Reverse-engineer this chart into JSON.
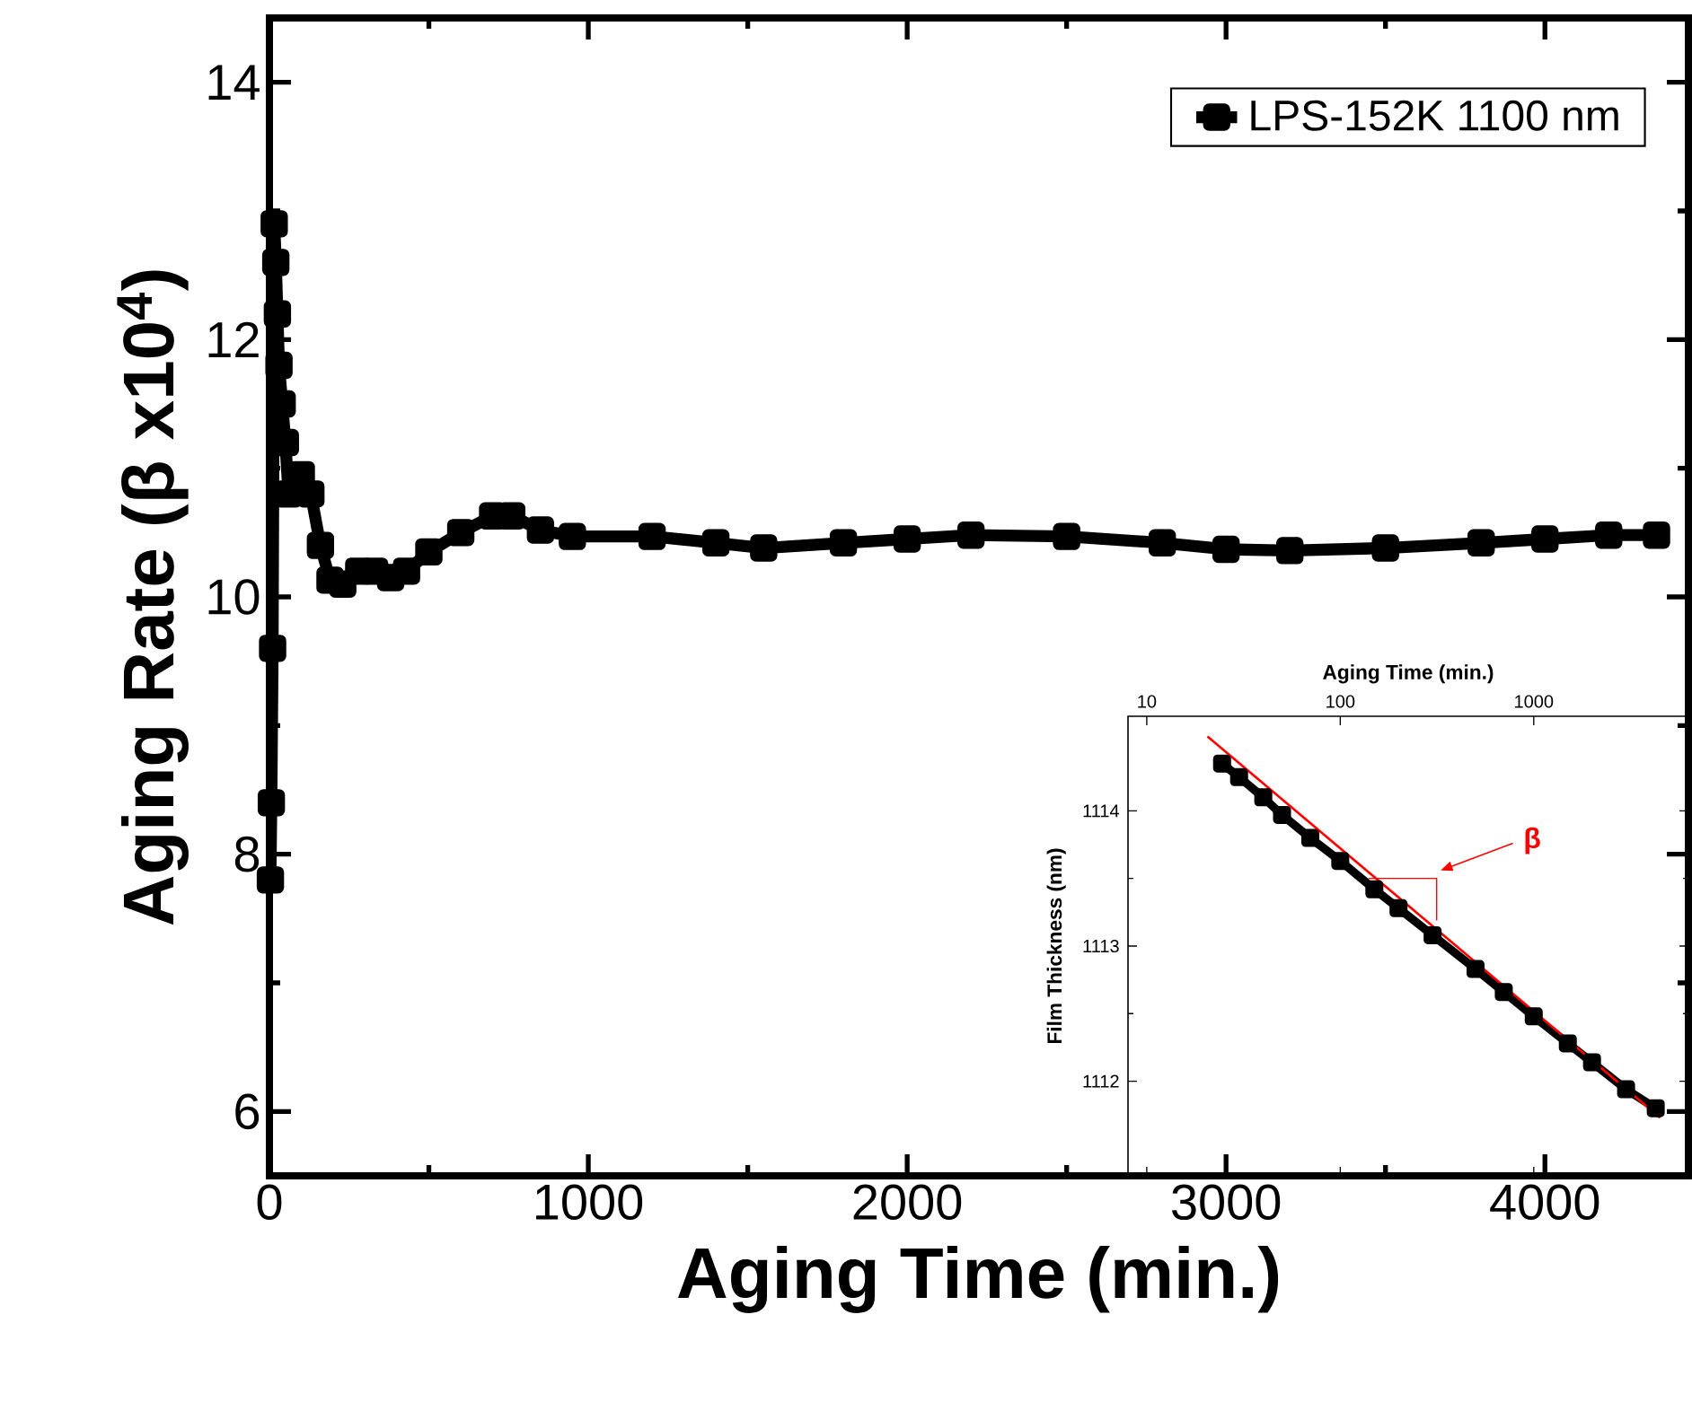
{
  "chart_data": [
    {
      "type": "line",
      "xlabel": "Aging Time (min.)",
      "ylabel": "Aging Rate (β x10$^{4}$)",
      "xlim": [
        0,
        4450
      ],
      "ylim": [
        5.5,
        14.5
      ],
      "xticks": [
        0,
        1000,
        2000,
        3000,
        4000
      ],
      "yticks": [
        6,
        8,
        10,
        12,
        14
      ],
      "marker": "square",
      "legend": "top right",
      "grid": false,
      "series": [
        {
          "name": "LPS-152K 1100 nm",
          "color": "#000000",
          "x": [
            3,
            6,
            10,
            15,
            20,
            25,
            30,
            40,
            50,
            60,
            100,
            130,
            160,
            190,
            230,
            280,
            330,
            380,
            430,
            500,
            600,
            700,
            760,
            850,
            950,
            1200,
            1400,
            1550,
            1800,
            2000,
            2200,
            2500,
            2800,
            3000,
            3200,
            3500,
            3800,
            4000,
            4200,
            4350
          ],
          "values": [
            7.8,
            8.4,
            9.6,
            12.9,
            12.6,
            12.2,
            11.8,
            11.5,
            11.2,
            10.8,
            10.95,
            10.8,
            10.4,
            10.13,
            10.1,
            10.2,
            10.2,
            10.15,
            10.2,
            10.35,
            10.5,
            10.63,
            10.63,
            10.52,
            10.47,
            10.47,
            10.42,
            10.38,
            10.42,
            10.45,
            10.48,
            10.47,
            10.42,
            10.37,
            10.36,
            10.38,
            10.42,
            10.45,
            10.48,
            10.48
          ]
        }
      ]
    },
    {
      "type": "line",
      "xlabel": "Aging Time (min.)",
      "ylabel": "Film Thickness (nm)",
      "log": "x",
      "xlim": [
        8,
        6300
      ],
      "ylim": [
        1111.3,
        1114.7
      ],
      "xticks": [
        10,
        100,
        1000
      ],
      "yticks": [
        1112,
        1113,
        1114
      ],
      "legend": false,
      "grid": false,
      "annotations": [
        "β"
      ],
      "series": [
        {
          "color": "#000000",
          "marker": "square",
          "x": [
            24.5,
            30,
            40,
            50,
            70,
            100,
            150,
            200,
            300,
            500,
            700,
            1000,
            1500,
            2000,
            3000,
            4270
          ],
          "values": [
            1114.35,
            1114.25,
            1114.1,
            1113.97,
            1113.8,
            1113.63,
            1113.42,
            1113.28,
            1113.08,
            1112.83,
            1112.66,
            1112.48,
            1112.28,
            1112.14,
            1111.94,
            1111.8
          ]
        },
        {
          "color": "#ff0000",
          "marker": "none",
          "x": [
            20.6,
            4500
          ],
          "values": [
            1114.55,
            1111.73
          ]
        }
      ]
    }
  ]
}
